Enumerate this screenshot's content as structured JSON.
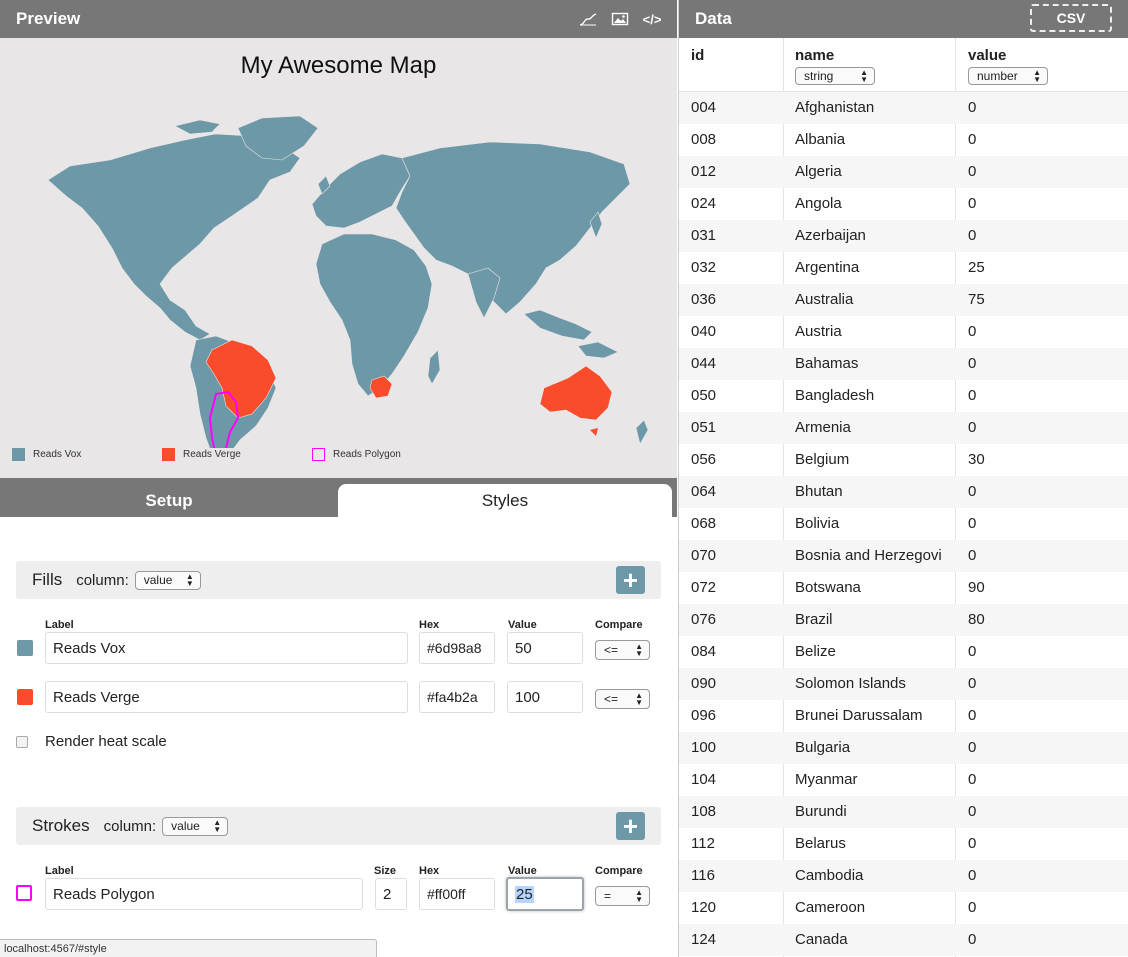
{
  "preview": {
    "title": "Preview",
    "map_title": "My Awesome Map",
    "icons": [
      "line-chart-icon",
      "image-icon",
      "code-icon"
    ],
    "code_glyph": "</>",
    "legend": [
      {
        "label": "Reads Vox",
        "color": "#6d98a8",
        "style": "fill"
      },
      {
        "label": "Reads Verge",
        "color": "#fa4b2a",
        "style": "fill"
      },
      {
        "label": "Reads Polygon",
        "color": "#ff00ff",
        "style": "stroke"
      }
    ]
  },
  "tabs": {
    "setup": "Setup",
    "styles": "Styles"
  },
  "fills": {
    "heading": "Fills",
    "column_label": "column:",
    "column_value": "value",
    "headers": {
      "label": "Label",
      "hex": "Hex",
      "value": "Value",
      "compare": "Compare"
    },
    "rows": [
      {
        "label": "Reads Vox",
        "hex": "#6d98a8",
        "value": "50",
        "compare": "<="
      },
      {
        "label": "Reads Verge",
        "hex": "#fa4b2a",
        "value": "100",
        "compare": "<="
      }
    ],
    "heat_scale_label": "Render heat scale"
  },
  "strokes": {
    "heading": "Strokes",
    "column_label": "column:",
    "column_value": "value",
    "headers": {
      "label": "Label",
      "size": "Size",
      "hex": "Hex",
      "value": "Value",
      "compare": "Compare"
    },
    "rows": [
      {
        "label": "Reads Polygon",
        "size": "2",
        "hex": "#ff00ff",
        "value": "25",
        "compare": "="
      }
    ]
  },
  "status_url": "localhost:4567/#style",
  "data_panel": {
    "title": "Data",
    "csv_label": "CSV",
    "columns": [
      {
        "name": "id",
        "type": ""
      },
      {
        "name": "name",
        "type": "string"
      },
      {
        "name": "value",
        "type": "number"
      }
    ],
    "rows": [
      [
        "004",
        "Afghanistan",
        "0"
      ],
      [
        "008",
        "Albania",
        "0"
      ],
      [
        "012",
        "Algeria",
        "0"
      ],
      [
        "024",
        "Angola",
        "0"
      ],
      [
        "031",
        "Azerbaijan",
        "0"
      ],
      [
        "032",
        "Argentina",
        "25"
      ],
      [
        "036",
        "Australia",
        "75"
      ],
      [
        "040",
        "Austria",
        "0"
      ],
      [
        "044",
        "Bahamas",
        "0"
      ],
      [
        "050",
        "Bangladesh",
        "0"
      ],
      [
        "051",
        "Armenia",
        "0"
      ],
      [
        "056",
        "Belgium",
        "30"
      ],
      [
        "064",
        "Bhutan",
        "0"
      ],
      [
        "068",
        "Bolivia",
        "0"
      ],
      [
        "070",
        "Bosnia and Herzegovi",
        "0"
      ],
      [
        "072",
        "Botswana",
        "90"
      ],
      [
        "076",
        "Brazil",
        "80"
      ],
      [
        "084",
        "Belize",
        "0"
      ],
      [
        "090",
        "Solomon Islands",
        "0"
      ],
      [
        "096",
        "Brunei Darussalam",
        "0"
      ],
      [
        "100",
        "Bulgaria",
        "0"
      ],
      [
        "104",
        "Myanmar",
        "0"
      ],
      [
        "108",
        "Burundi",
        "0"
      ],
      [
        "112",
        "Belarus",
        "0"
      ],
      [
        "116",
        "Cambodia",
        "0"
      ],
      [
        "120",
        "Cameroon",
        "0"
      ],
      [
        "124",
        "Canada",
        "0"
      ]
    ]
  },
  "colors": {
    "vox": "#6d98a8",
    "verge": "#fa4b2a",
    "polygon": "#ff00ff",
    "map_bg": "#e8e6e7"
  }
}
